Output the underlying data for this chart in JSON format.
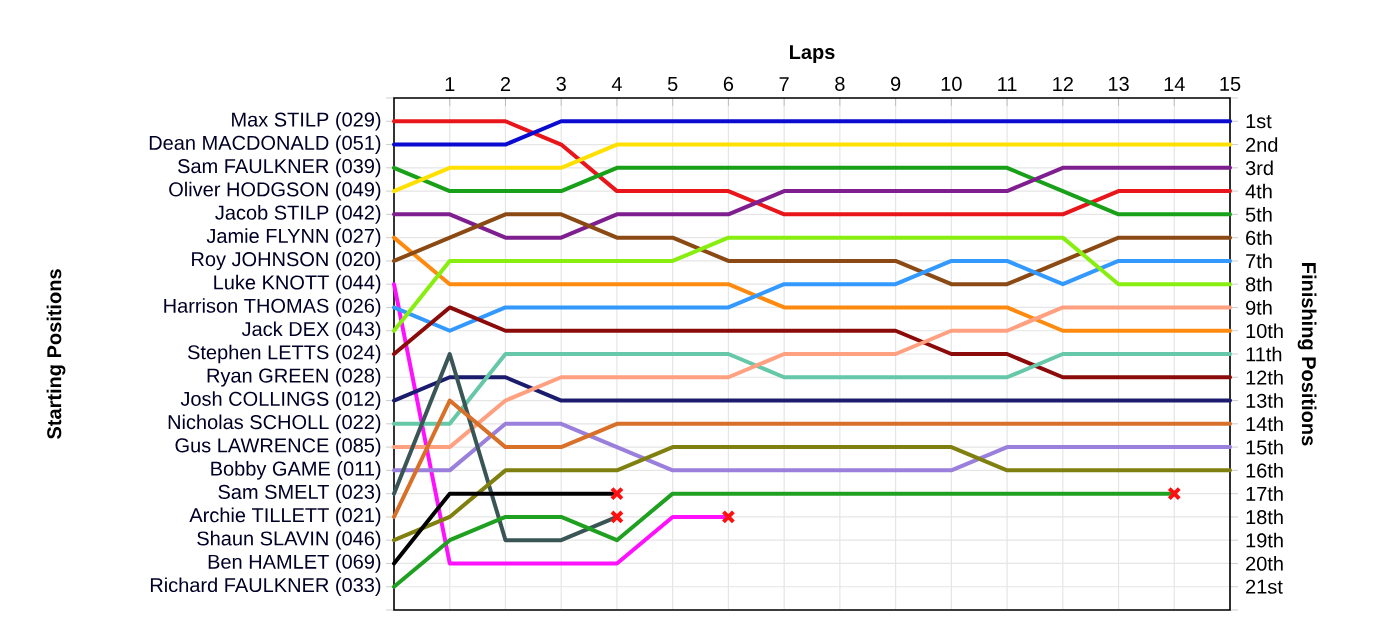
{
  "chart_data": {
    "type": "line",
    "xlabel": "Laps",
    "ylabel": "Finishing Positions",
    "x": [
      0,
      1,
      2,
      3,
      4,
      5,
      6,
      7,
      8,
      9,
      10,
      11,
      12,
      13,
      14,
      15
    ],
    "xlim": [
      0,
      15
    ],
    "xticks": [
      1,
      2,
      3,
      4,
      5,
      6,
      7,
      8,
      9,
      10,
      11,
      12,
      13,
      14,
      15
    ],
    "ylim": [
      22,
      0
    ],
    "yticks": [
      {
        "value": 0,
        "label": null
      },
      {
        "value": 1,
        "label": "1st"
      },
      {
        "value": 2,
        "label": "2nd"
      },
      {
        "value": 3,
        "label": "3rd"
      },
      {
        "value": 4,
        "label": "4th"
      },
      {
        "value": 5,
        "label": "5th"
      },
      {
        "value": 6,
        "label": "6th"
      },
      {
        "value": 7,
        "label": "7th"
      },
      {
        "value": 8,
        "label": "8th"
      },
      {
        "value": 9,
        "label": "9th"
      },
      {
        "value": 10,
        "label": "10th"
      },
      {
        "value": 11,
        "label": "11th"
      },
      {
        "value": 12,
        "label": "12th"
      },
      {
        "value": 13,
        "label": "13th"
      },
      {
        "value": 14,
        "label": "14th"
      },
      {
        "value": 15,
        "label": "15th"
      },
      {
        "value": 16,
        "label": "16th"
      },
      {
        "value": 17,
        "label": "17th"
      },
      {
        "value": 18,
        "label": "18th"
      },
      {
        "value": 19,
        "label": "19th"
      },
      {
        "value": 20,
        "label": "20th"
      },
      {
        "value": 21,
        "label": "21st"
      },
      {
        "value": 22,
        "label": null
      }
    ],
    "grid": true,
    "marker": "none",
    "line_style": "solid",
    "annotations": [
      "Starting Positions",
      "Ryan GREEN (028)"
    ],
    "series": [
      {
        "name": "Max STILP (029)",
        "color": "#e8161b",
        "values": [
          1,
          1,
          1,
          2,
          4,
          4,
          4,
          5,
          5,
          5,
          5,
          5,
          5,
          4,
          4,
          4
        ]
      },
      {
        "name": "Dean MACDONALD (051)",
        "color": "#0a0ad0",
        "values": [
          2,
          2,
          2,
          1,
          1,
          1,
          1,
          1,
          1,
          1,
          1,
          1,
          1,
          1,
          1,
          1
        ]
      },
      {
        "name": "Sam FAULKNER (039)",
        "color": "#18a018",
        "values": [
          3,
          4,
          4,
          4,
          3,
          3,
          3,
          3,
          3,
          3,
          3,
          3,
          4,
          5,
          5,
          5
        ]
      },
      {
        "name": "Oliver HODGSON (049)",
        "color": "#ffe000",
        "values": [
          4,
          3,
          3,
          3,
          2,
          2,
          2,
          2,
          2,
          2,
          2,
          2,
          2,
          2,
          2,
          2
        ]
      },
      {
        "name": "Jacob STILP (042)",
        "color": "#7f1f8f",
        "values": [
          5,
          5,
          6,
          6,
          5,
          5,
          5,
          4,
          4,
          4,
          4,
          4,
          3,
          3,
          3,
          3
        ]
      },
      {
        "name": "Jamie FLYNN (027)",
        "color": "#ff8a10",
        "values": [
          6,
          8,
          8,
          8,
          8,
          8,
          8,
          9,
          9,
          9,
          9,
          9,
          10,
          10,
          10,
          10
        ]
      },
      {
        "name": "Roy JOHNSON (020)",
        "color": "#8b4a14",
        "values": [
          7,
          6,
          5,
          5,
          6,
          6,
          7,
          7,
          7,
          7,
          8,
          8,
          7,
          6,
          6,
          6
        ]
      },
      {
        "name": "Luke KNOTT (044)",
        "color": "#ff10ff",
        "values": [
          8,
          20,
          20,
          20,
          20,
          18,
          18,
          null,
          null,
          null,
          null,
          null,
          null,
          null,
          null,
          null
        ]
      },
      {
        "name": "Harrison THOMAS (026)",
        "color": "#3399ff",
        "values": [
          9,
          10,
          9,
          9,
          9,
          9,
          9,
          8,
          8,
          8,
          7,
          7,
          8,
          7,
          7,
          7
        ]
      },
      {
        "name": "Jack DEX (043)",
        "color": "#88ee10",
        "values": [
          10,
          7,
          7,
          7,
          7,
          7,
          6,
          6,
          6,
          6,
          6,
          6,
          6,
          8,
          8,
          8
        ]
      },
      {
        "name": "Stephen LETTS (024)",
        "color": "#8b0a0a",
        "values": [
          11,
          9,
          10,
          10,
          10,
          10,
          10,
          10,
          10,
          10,
          11,
          11,
          12,
          12,
          12,
          12
        ]
      },
      {
        "name": "Josh COLLINGS (012)",
        "color": "#1c1c6e",
        "values": [
          13,
          12,
          12,
          13,
          13,
          13,
          13,
          13,
          13,
          13,
          13,
          13,
          13,
          13,
          13,
          13
        ]
      },
      {
        "name": "Nicholas SCHOLL (022)",
        "color": "#66c8a8",
        "values": [
          14,
          14,
          11,
          11,
          11,
          11,
          11,
          12,
          12,
          12,
          12,
          12,
          11,
          11,
          11,
          11
        ]
      },
      {
        "name": "Gus LAWRENCE (085)",
        "color": "#ffa080",
        "values": [
          15,
          15,
          13,
          12,
          12,
          12,
          12,
          11,
          11,
          11,
          10,
          10,
          9,
          9,
          9,
          9
        ]
      },
      {
        "name": "Bobby GAME (011)",
        "color": "#9a80dc",
        "values": [
          16,
          16,
          14,
          14,
          15,
          16,
          16,
          16,
          16,
          16,
          16,
          15,
          15,
          15,
          15,
          15
        ]
      },
      {
        "name": "Sam SMELT (023)",
        "color": "#3a5555",
        "values": [
          17,
          11,
          19,
          19,
          18,
          null,
          null,
          null,
          null,
          null,
          null,
          null,
          null,
          null,
          null,
          null
        ]
      },
      {
        "name": "Archie TILLETT (021)",
        "color": "#d8702a",
        "values": [
          18,
          13,
          15,
          15,
          14,
          14,
          14,
          14,
          14,
          14,
          14,
          14,
          14,
          14,
          14,
          14
        ]
      },
      {
        "name": "Shaun SLAVIN (046)",
        "color": "#808010",
        "values": [
          19,
          18,
          16,
          16,
          16,
          15,
          15,
          15,
          15,
          15,
          15,
          16,
          16,
          16,
          16,
          16
        ]
      },
      {
        "name": "Ben HAMLET (069)",
        "color": "#000000",
        "values": [
          20,
          17,
          17,
          17,
          17,
          null,
          null,
          null,
          null,
          null,
          null,
          null,
          null,
          null,
          null,
          null
        ]
      },
      {
        "name": "Richard FAULKNER (033)",
        "color": "#20a020",
        "values": [
          21,
          19,
          18,
          18,
          19,
          17,
          17,
          17,
          17,
          17,
          17,
          17,
          17,
          17,
          17,
          null
        ]
      },
      {
        "type": "scatter",
        "marker": "cross",
        "color": "#ff1010",
        "x": [
          4,
          4,
          6,
          14
        ],
        "values": [
          17,
          18,
          18,
          17
        ]
      }
    ]
  }
}
